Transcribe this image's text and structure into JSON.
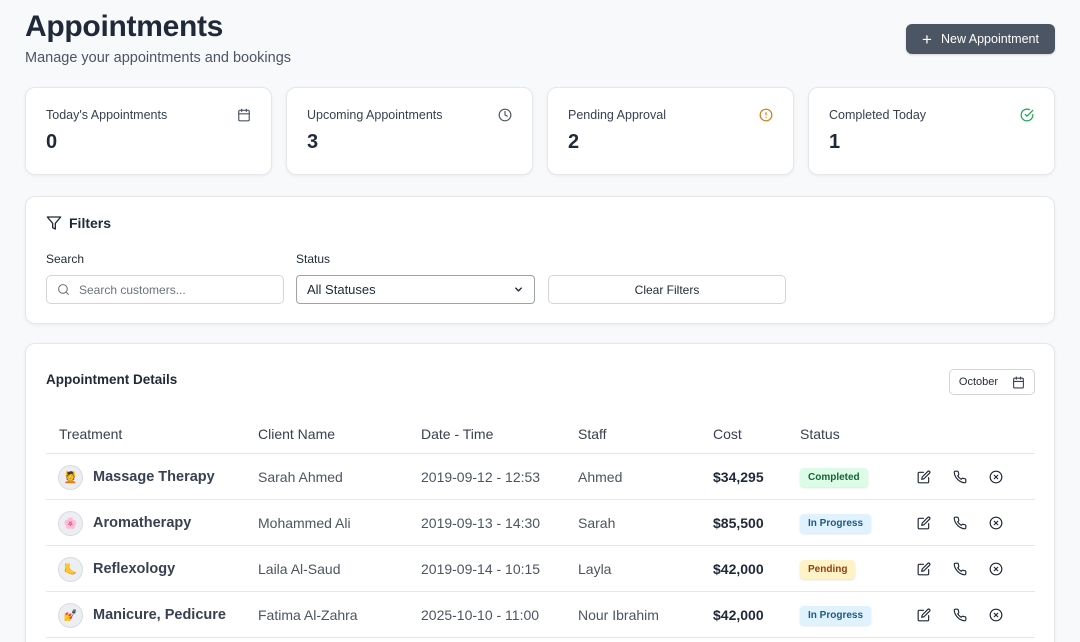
{
  "header": {
    "title": "Appointments",
    "subtitle": "Manage your appointments and bookings",
    "new_button_label": "New Appointment"
  },
  "stats": [
    {
      "label": "Today's Appointments",
      "value": "0",
      "icon": "calendar-icon",
      "icon_color": "#4b5563"
    },
    {
      "label": "Upcoming Appointments",
      "value": "3",
      "icon": "clock-icon",
      "icon_color": "#4b5563"
    },
    {
      "label": "Pending Approval",
      "value": "2",
      "icon": "alert-circle-icon",
      "icon_color": "#d97706"
    },
    {
      "label": "Completed Today",
      "value": "1",
      "icon": "check-circle-icon",
      "icon_color": "#16a34a"
    }
  ],
  "filters": {
    "title": "Filters",
    "search_label": "Search",
    "search_placeholder": "Search customers...",
    "status_label": "Status",
    "status_value": "All Statuses",
    "clear_label": "Clear Filters"
  },
  "details": {
    "title": "Appointment Details",
    "month": "October",
    "columns": [
      "Treatment",
      "Client Name",
      "Date - Time",
      "Staff",
      "Cost",
      "Status"
    ],
    "rows": [
      {
        "treatment": "Massage Therapy",
        "avatar": "💆",
        "client": "Sarah Ahmed",
        "datetime": "2019-09-12 - 12:53",
        "staff": "Ahmed",
        "cost": "$34,295",
        "status": "Completed",
        "status_kind": "completed"
      },
      {
        "treatment": "Aromatherapy",
        "avatar": "🌸",
        "client": "Mohammed Ali",
        "datetime": "2019-09-13 - 14:30",
        "staff": "Sarah",
        "cost": "$85,500",
        "status": "In Progress",
        "status_kind": "inprogress"
      },
      {
        "treatment": "Reflexology",
        "avatar": "🦶",
        "client": "Laila Al-Saud",
        "datetime": "2019-09-14 - 10:15",
        "staff": "Layla",
        "cost": "$42,000",
        "status": "Pending",
        "status_kind": "pending"
      },
      {
        "treatment": "Manicure, Pedicure",
        "avatar": "💅",
        "client": "Fatima Al-Zahra",
        "datetime": "2025-10-10 - 11:00",
        "staff": "Nour Ibrahim",
        "cost": "$42,000",
        "status": "In Progress",
        "status_kind": "inprogress"
      }
    ]
  },
  "colors": {
    "primary_button": "#4b5563",
    "completed": "#dcfce7",
    "in_progress": "#e0f2fe",
    "pending": "#fef3c7"
  }
}
